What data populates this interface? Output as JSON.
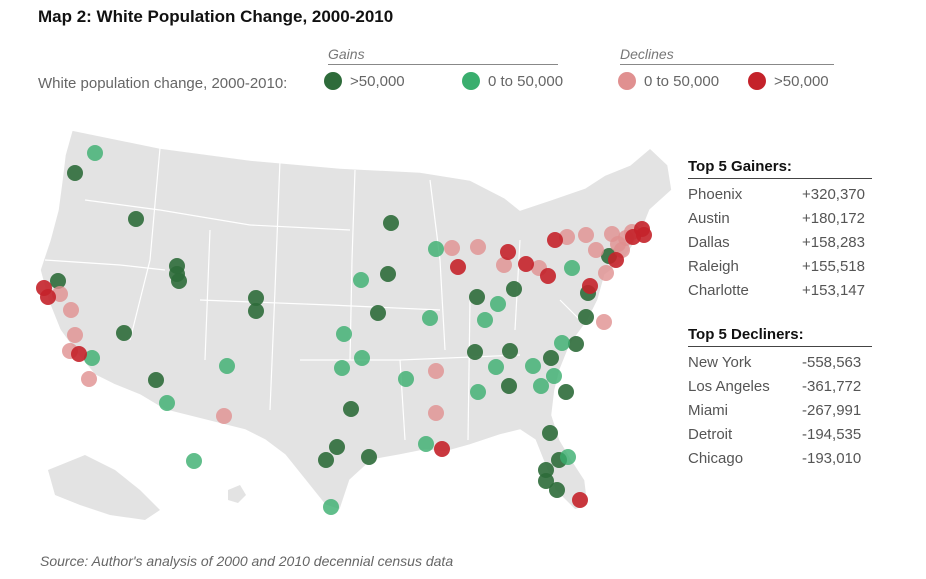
{
  "title": "Map 2:  White Population Change, 2000-2010",
  "legend": {
    "label": "White population change, 2000-2010:",
    "gains_header": "Gains",
    "declines_header": "Declines",
    "items": [
      {
        "label": ">50,000",
        "color": "#2e6b3a"
      },
      {
        "label": "0 to 50,000",
        "color": "#3aae6e"
      },
      {
        "label": "0 to 50,000",
        "color": "#e09090"
      },
      {
        "label": ">50,000",
        "color": "#c4222a"
      }
    ]
  },
  "gainers": {
    "title": "Top 5 Gainers:",
    "rows": [
      {
        "name": "Phoenix",
        "value": "+320,370"
      },
      {
        "name": "Austin",
        "value": "+180,172"
      },
      {
        "name": "Dallas",
        "value": "+158,283"
      },
      {
        "name": "Raleigh",
        "value": "+155,518"
      },
      {
        "name": "Charlotte",
        "value": "+153,147"
      }
    ]
  },
  "decliners": {
    "title": "Top 5 Decliners:",
    "rows": [
      {
        "name": "New York",
        "value": "-558,563"
      },
      {
        "name": "Los Angeles",
        "value": "-361,772"
      },
      {
        "name": "Miami",
        "value": "-267,991"
      },
      {
        "name": "Detroit",
        "value": "-194,535"
      },
      {
        "name": "Chicago",
        "value": "-193,010"
      }
    ]
  },
  "source": "Source: Author's analysis of 2000 and 2010 decennial census data"
}
